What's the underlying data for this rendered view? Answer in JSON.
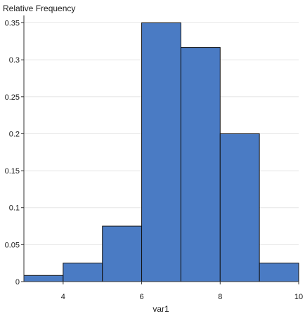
{
  "chart_data": {
    "type": "bar",
    "title": "Relative Frequency",
    "xlabel": "var1",
    "ylabel": "",
    "grid": true,
    "xlim": [
      3,
      10
    ],
    "ylim": [
      0,
      0.36
    ],
    "bins": [
      {
        "x0": 3,
        "x1": 4,
        "value": 0.0083
      },
      {
        "x0": 4,
        "x1": 5,
        "value": 0.025
      },
      {
        "x0": 5,
        "x1": 6,
        "value": 0.075
      },
      {
        "x0": 6,
        "x1": 7,
        "value": 0.35
      },
      {
        "x0": 7,
        "x1": 8,
        "value": 0.3167
      },
      {
        "x0": 8,
        "x1": 9,
        "value": 0.2
      },
      {
        "x0": 9,
        "x1": 10,
        "value": 0.025
      }
    ],
    "xticks": [
      4,
      6,
      8,
      10
    ],
    "yticks": [
      0,
      0.05,
      0.1,
      0.15,
      0.2,
      0.25,
      0.3,
      0.35
    ],
    "ytick_labels": [
      "0",
      "0.05",
      "0.1",
      "0.15",
      "0.2",
      "0.25",
      "0.3",
      "0.35"
    ],
    "xtick_labels": [
      "4",
      "6",
      "8",
      "10"
    ],
    "bar_color": "#4a7bc4",
    "bar_edge_color": "#111111",
    "grid_color": "#e6e6e6"
  }
}
